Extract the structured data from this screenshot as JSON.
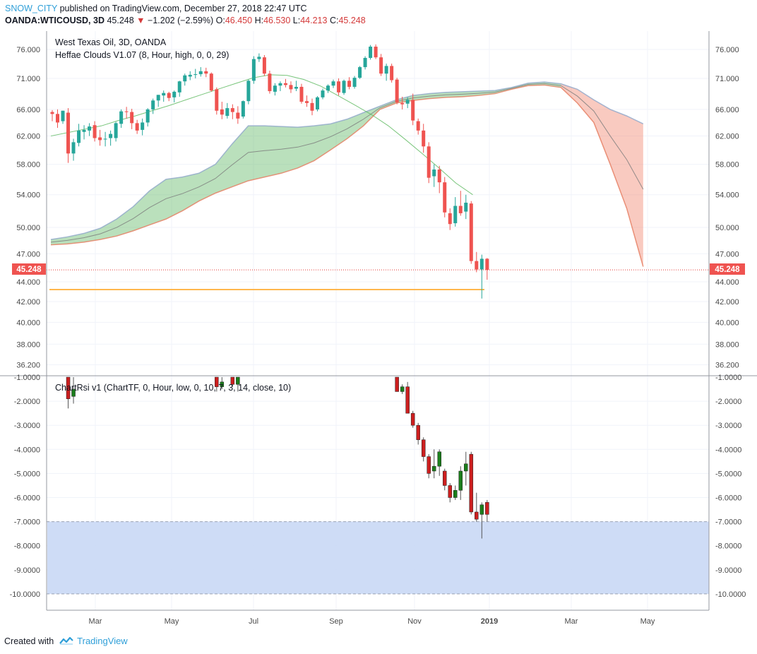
{
  "header": {
    "author": "SNOW_CITY",
    "published": "published on TradingView.com, December 27, 2018 22:47 UTC",
    "symbol": "OANDA:WTICOUSD, 3D",
    "last": "45.248",
    "arrow": "▼",
    "change": "−1.202 (−2.59%)",
    "o_label": "O:",
    "o_val": "46.450",
    "h_label": "H:",
    "h_val": "46.530",
    "l_label": "L:",
    "l_val": "44.213",
    "c_label": "C:",
    "c_val": "45.248"
  },
  "legend": {
    "main_title": "West Texas Oil, 3D, OANDA",
    "indicator": "Heffae Clouds V1.07 (8, Hour, high, 0, 0, 29)",
    "rsi_indicator": "ChartRsi v1 (ChartTF, 0, Hour, low, 0, 10, 7, 3, 14, close, 10)"
  },
  "price_label": "45.248",
  "footer": {
    "created": "Created with",
    "brand": "TradingView"
  },
  "colors": {
    "up": "#26a69a",
    "down": "#ef5350",
    "price_line": "#e53935",
    "support": "#ffb74d",
    "cloud_green": "#66bb6a",
    "cloud_light": "#ccf5cc",
    "cloud_red": "#f28a73",
    "band": "#c9d8f5",
    "osc_up": "#1b7d1b",
    "osc_down": "#cc1f1f"
  },
  "chart_data": {
    "type": "candlestick",
    "title": "West Texas Oil, 3D, OANDA",
    "x_ticks": [
      "Mar",
      "May",
      "Jul",
      "Sep",
      "Nov",
      "2019",
      "Mar",
      "May"
    ],
    "y_ticks_price": [
      "76.000",
      "71.000",
      "66.000",
      "62.000",
      "58.000",
      "54.000",
      "50.000",
      "47.000",
      "44.000",
      "42.000",
      "40.000",
      "38.000",
      "36.200"
    ],
    "y_ticks_rsi": [
      "-1.0000",
      "-2.0000",
      "-3.0000",
      "-4.0000",
      "-5.0000",
      "-6.0000",
      "-7.0000",
      "-8.0000",
      "-9.0000",
      "-10.0000"
    ],
    "price_scale": "log",
    "last_price": 45.248,
    "support_level": 43.2,
    "candles": [
      {
        "t": 0,
        "o": 65.6,
        "h": 65.9,
        "l": 64.2,
        "c": 65.3
      },
      {
        "t": 1,
        "o": 65.3,
        "h": 66.0,
        "l": 63.2,
        "c": 64.0
      },
      {
        "t": 2,
        "o": 64.2,
        "h": 65.8,
        "l": 63.8,
        "c": 65.8
      },
      {
        "t": 3,
        "o": 65.5,
        "h": 66.2,
        "l": 58.2,
        "c": 59.5
      },
      {
        "t": 4,
        "o": 59.5,
        "h": 61.6,
        "l": 58.5,
        "c": 61.1
      },
      {
        "t": 5,
        "o": 61.0,
        "h": 63.8,
        "l": 60.5,
        "c": 62.8
      },
      {
        "t": 6,
        "o": 62.6,
        "h": 63.6,
        "l": 61.5,
        "c": 62.9
      },
      {
        "t": 7,
        "o": 62.8,
        "h": 63.9,
        "l": 62.0,
        "c": 63.4
      },
      {
        "t": 8,
        "o": 63.6,
        "h": 64.2,
        "l": 61.2,
        "c": 61.7
      },
      {
        "t": 9,
        "o": 61.8,
        "h": 62.9,
        "l": 60.6,
        "c": 61.4
      },
      {
        "t": 10,
        "o": 61.5,
        "h": 62.6,
        "l": 60.5,
        "c": 61.6
      },
      {
        "t": 11,
        "o": 61.7,
        "h": 62.8,
        "l": 60.6,
        "c": 62.3
      },
      {
        "t": 12,
        "o": 61.7,
        "h": 64.1,
        "l": 61.2,
        "c": 63.9
      },
      {
        "t": 13,
        "o": 63.8,
        "h": 66.0,
        "l": 63.2,
        "c": 65.7
      },
      {
        "t": 14,
        "o": 65.7,
        "h": 66.4,
        "l": 64.6,
        "c": 65.6
      },
      {
        "t": 15,
        "o": 65.6,
        "h": 66.1,
        "l": 63.0,
        "c": 63.9
      },
      {
        "t": 16,
        "o": 63.9,
        "h": 64.4,
        "l": 62.3,
        "c": 62.8
      },
      {
        "t": 17,
        "o": 62.9,
        "h": 64.6,
        "l": 62.1,
        "c": 64.0
      },
      {
        "t": 18,
        "o": 64.0,
        "h": 66.2,
        "l": 63.4,
        "c": 66.0
      },
      {
        "t": 19,
        "o": 66.0,
        "h": 67.7,
        "l": 65.3,
        "c": 67.4
      },
      {
        "t": 20,
        "o": 67.4,
        "h": 68.3,
        "l": 66.4,
        "c": 68.3
      },
      {
        "t": 21,
        "o": 68.2,
        "h": 69.0,
        "l": 67.2,
        "c": 68.6
      },
      {
        "t": 22,
        "o": 68.6,
        "h": 68.8,
        "l": 67.3,
        "c": 67.8
      },
      {
        "t": 23,
        "o": 67.9,
        "h": 69.0,
        "l": 67.1,
        "c": 68.8
      },
      {
        "t": 24,
        "o": 68.7,
        "h": 70.6,
        "l": 68.0,
        "c": 70.5
      },
      {
        "t": 25,
        "o": 70.5,
        "h": 71.8,
        "l": 69.8,
        "c": 71.5
      },
      {
        "t": 26,
        "o": 71.3,
        "h": 72.2,
        "l": 70.7,
        "c": 71.6
      },
      {
        "t": 27,
        "o": 71.6,
        "h": 72.6,
        "l": 71.0,
        "c": 71.7
      },
      {
        "t": 28,
        "o": 71.7,
        "h": 72.9,
        "l": 71.3,
        "c": 72.2
      },
      {
        "t": 29,
        "o": 72.2,
        "h": 72.8,
        "l": 71.2,
        "c": 71.8
      },
      {
        "t": 30,
        "o": 71.8,
        "h": 72.0,
        "l": 68.8,
        "c": 69.0
      },
      {
        "t": 31,
        "o": 69.2,
        "h": 69.5,
        "l": 65.2,
        "c": 65.8
      },
      {
        "t": 32,
        "o": 66.0,
        "h": 67.2,
        "l": 64.5,
        "c": 65.2
      },
      {
        "t": 33,
        "o": 65.0,
        "h": 67.0,
        "l": 64.6,
        "c": 66.2
      },
      {
        "t": 34,
        "o": 66.2,
        "h": 66.8,
        "l": 64.5,
        "c": 65.6
      },
      {
        "t": 35,
        "o": 65.5,
        "h": 66.5,
        "l": 63.8,
        "c": 64.6
      },
      {
        "t": 36,
        "o": 64.9,
        "h": 67.4,
        "l": 64.6,
        "c": 67.3
      },
      {
        "t": 37,
        "o": 67.3,
        "h": 70.8,
        "l": 66.8,
        "c": 70.6
      },
      {
        "t": 38,
        "o": 70.6,
        "h": 74.8,
        "l": 70.1,
        "c": 74.3
      },
      {
        "t": 39,
        "o": 74.3,
        "h": 75.3,
        "l": 73.8,
        "c": 74.7
      },
      {
        "t": 40,
        "o": 74.6,
        "h": 75.0,
        "l": 71.4,
        "c": 71.8
      },
      {
        "t": 41,
        "o": 71.8,
        "h": 72.3,
        "l": 68.5,
        "c": 68.9
      },
      {
        "t": 42,
        "o": 68.8,
        "h": 70.2,
        "l": 68.2,
        "c": 69.8
      },
      {
        "t": 43,
        "o": 69.8,
        "h": 70.5,
        "l": 68.9,
        "c": 70.2
      },
      {
        "t": 44,
        "o": 70.2,
        "h": 70.9,
        "l": 69.5,
        "c": 69.9
      },
      {
        "t": 45,
        "o": 69.9,
        "h": 70.5,
        "l": 68.6,
        "c": 69.2
      },
      {
        "t": 46,
        "o": 69.3,
        "h": 70.6,
        "l": 68.9,
        "c": 69.6
      },
      {
        "t": 47,
        "o": 69.6,
        "h": 70.1,
        "l": 66.9,
        "c": 67.2
      },
      {
        "t": 48,
        "o": 67.3,
        "h": 68.2,
        "l": 66.4,
        "c": 67.0
      },
      {
        "t": 49,
        "o": 67.0,
        "h": 67.7,
        "l": 65.1,
        "c": 65.8
      },
      {
        "t": 50,
        "o": 66.0,
        "h": 68.1,
        "l": 65.7,
        "c": 67.9
      },
      {
        "t": 51,
        "o": 67.9,
        "h": 69.3,
        "l": 67.6,
        "c": 69.0
      },
      {
        "t": 52,
        "o": 69.0,
        "h": 70.0,
        "l": 68.6,
        "c": 69.8
      },
      {
        "t": 53,
        "o": 69.8,
        "h": 70.8,
        "l": 69.4,
        "c": 70.5
      },
      {
        "t": 54,
        "o": 70.5,
        "h": 71.0,
        "l": 68.2,
        "c": 68.7
      },
      {
        "t": 55,
        "o": 68.6,
        "h": 70.8,
        "l": 68.3,
        "c": 70.6
      },
      {
        "t": 56,
        "o": 70.6,
        "h": 71.2,
        "l": 69.2,
        "c": 69.6
      },
      {
        "t": 57,
        "o": 69.6,
        "h": 71.4,
        "l": 69.3,
        "c": 71.1
      },
      {
        "t": 58,
        "o": 71.1,
        "h": 73.1,
        "l": 70.9,
        "c": 72.9
      },
      {
        "t": 59,
        "o": 72.9,
        "h": 74.8,
        "l": 72.5,
        "c": 74.5
      },
      {
        "t": 60,
        "o": 74.5,
        "h": 76.8,
        "l": 74.2,
        "c": 76.5
      },
      {
        "t": 61,
        "o": 76.5,
        "h": 76.9,
        "l": 74.3,
        "c": 74.6
      },
      {
        "t": 62,
        "o": 74.6,
        "h": 75.2,
        "l": 71.4,
        "c": 71.8
      },
      {
        "t": 63,
        "o": 71.8,
        "h": 73.5,
        "l": 70.6,
        "c": 73.1
      },
      {
        "t": 64,
        "o": 73.1,
        "h": 73.5,
        "l": 70.3,
        "c": 70.7
      },
      {
        "t": 65,
        "o": 70.8,
        "h": 71.1,
        "l": 66.8,
        "c": 67.1
      },
      {
        "t": 66,
        "o": 67.0,
        "h": 68.0,
        "l": 66.0,
        "c": 66.8
      },
      {
        "t": 67,
        "o": 66.9,
        "h": 67.9,
        "l": 66.2,
        "c": 67.5
      },
      {
        "t": 68,
        "o": 67.5,
        "h": 68.5,
        "l": 63.6,
        "c": 64.3
      },
      {
        "t": 69,
        "o": 64.2,
        "h": 64.6,
        "l": 62.2,
        "c": 62.8
      },
      {
        "t": 70,
        "o": 62.8,
        "h": 63.8,
        "l": 59.6,
        "c": 60.5
      },
      {
        "t": 71,
        "o": 60.5,
        "h": 61.1,
        "l": 55.5,
        "c": 56.2
      },
      {
        "t": 72,
        "o": 56.4,
        "h": 58.0,
        "l": 55.0,
        "c": 57.3
      },
      {
        "t": 73,
        "o": 57.3,
        "h": 57.8,
        "l": 54.2,
        "c": 55.6
      },
      {
        "t": 74,
        "o": 55.6,
        "h": 56.3,
        "l": 51.2,
        "c": 51.8
      },
      {
        "t": 75,
        "o": 51.7,
        "h": 52.3,
        "l": 49.7,
        "c": 50.4
      },
      {
        "t": 76,
        "o": 50.5,
        "h": 53.7,
        "l": 50.1,
        "c": 52.6
      },
      {
        "t": 77,
        "o": 52.6,
        "h": 54.5,
        "l": 51.4,
        "c": 51.7
      },
      {
        "t": 78,
        "o": 51.9,
        "h": 54.0,
        "l": 51.0,
        "c": 53.0
      },
      {
        "t": 79,
        "o": 52.9,
        "h": 53.2,
        "l": 45.9,
        "c": 46.2
      },
      {
        "t": 80,
        "o": 46.2,
        "h": 47.2,
        "l": 45.0,
        "c": 45.3
      },
      {
        "t": 81,
        "o": 45.3,
        "h": 46.9,
        "l": 42.3,
        "c": 46.45
      },
      {
        "t": 82,
        "o": 46.45,
        "h": 46.53,
        "l": 44.21,
        "c": 45.248
      }
    ],
    "oscillator": {
      "name": "ChartRsi v1",
      "band": [
        -7.0,
        -10.0
      ],
      "visible_candles": [
        {
          "t": 3,
          "o": -1.0,
          "h": -1.0,
          "l": -2.3,
          "c": -1.9
        },
        {
          "t": 4,
          "o": -1.8,
          "h": -1.0,
          "l": -2.1,
          "c": -1.5
        },
        {
          "t": 31,
          "o": -1.0,
          "h": -1.0,
          "l": -1.6,
          "c": -1.4
        },
        {
          "t": 32,
          "o": -1.4,
          "h": -1.0,
          "l": -1.5,
          "c": -1.2
        },
        {
          "t": 34,
          "o": -1.0,
          "h": -1.0,
          "l": -1.4,
          "c": -1.3
        },
        {
          "t": 35,
          "o": -1.3,
          "h": -1.0,
          "l": -1.6,
          "c": -1.0
        },
        {
          "t": 65,
          "o": -1.0,
          "h": -1.0,
          "l": -1.6,
          "c": -1.6
        },
        {
          "t": 66,
          "o": -1.6,
          "h": -1.3,
          "l": -1.7,
          "c": -1.4
        },
        {
          "t": 67,
          "o": -1.4,
          "h": -1.2,
          "l": -2.5,
          "c": -2.5
        },
        {
          "t": 68,
          "o": -2.5,
          "h": -2.4,
          "l": -3.1,
          "c": -3.0
        },
        {
          "t": 69,
          "o": -3.0,
          "h": -2.9,
          "l": -3.8,
          "c": -3.6
        },
        {
          "t": 70,
          "o": -3.6,
          "h": -3.5,
          "l": -4.5,
          "c": -4.3
        },
        {
          "t": 71,
          "o": -4.3,
          "h": -4.2,
          "l": -5.2,
          "c": -5.0
        },
        {
          "t": 72,
          "o": -4.9,
          "h": -4.0,
          "l": -5.2,
          "c": -4.7
        },
        {
          "t": 73,
          "o": -4.7,
          "h": -4.0,
          "l": -5.1,
          "c": -4.1
        },
        {
          "t": 74,
          "o": -4.9,
          "h": -4.8,
          "l": -5.7,
          "c": -5.5
        },
        {
          "t": 75,
          "o": -5.5,
          "h": -5.4,
          "l": -6.2,
          "c": -6.0
        },
        {
          "t": 76,
          "o": -6.0,
          "h": -5.5,
          "l": -6.1,
          "c": -5.7
        },
        {
          "t": 77,
          "o": -5.7,
          "h": -4.7,
          "l": -6.1,
          "c": -4.9
        },
        {
          "t": 78,
          "o": -4.9,
          "h": -4.1,
          "l": -5.5,
          "c": -4.6
        },
        {
          "t": 79,
          "o": -4.2,
          "h": -4.1,
          "l": -6.7,
          "c": -6.6
        },
        {
          "t": 80,
          "o": -6.6,
          "h": -5.8,
          "l": -7.0,
          "c": -6.9
        },
        {
          "t": 81,
          "o": -6.7,
          "h": -6.2,
          "l": -7.7,
          "c": -6.3
        },
        {
          "t": 82,
          "o": -6.2,
          "h": -6.1,
          "l": -7.0,
          "c": -6.7
        }
      ]
    },
    "cloud": {
      "upper": [
        48.6,
        48.9,
        49.3,
        49.9,
        51.0,
        52.5,
        54.5,
        56.0,
        56.3,
        56.8,
        58.0,
        60.8,
        63.5,
        63.5,
        63.4,
        63.3,
        63.5,
        63.8,
        64.5,
        65.5,
        66.5,
        67.5,
        68.2,
        68.5,
        68.7,
        68.8,
        68.9,
        69.0,
        69.5,
        70.2,
        70.4,
        70.1,
        69.2,
        67.5,
        66.0,
        65.0,
        63.8
      ],
      "lower": [
        48.0,
        48.1,
        48.3,
        48.6,
        49.0,
        49.6,
        50.3,
        51.0,
        52.0,
        53.2,
        54.2,
        55.0,
        55.8,
        56.3,
        56.8,
        57.5,
        58.5,
        60.0,
        61.6,
        63.5,
        66.0,
        67.0,
        67.4,
        67.7,
        67.9,
        68.0,
        68.2,
        68.5,
        69.2,
        69.8,
        69.9,
        69.5,
        67.0,
        64.0,
        58.0,
        52.3,
        45.6
      ],
      "recent_high_line": [
        62.0,
        62.5,
        63.0,
        63.5,
        64.3,
        65.0,
        65.8,
        66.6,
        67.5,
        68.4,
        69.3,
        70.2,
        71.1,
        71.6,
        71.5,
        70.8,
        69.7,
        68.2,
        66.7,
        65.2,
        63.5,
        61.5,
        59.5,
        57.5,
        55.5,
        54.0
      ]
    }
  }
}
